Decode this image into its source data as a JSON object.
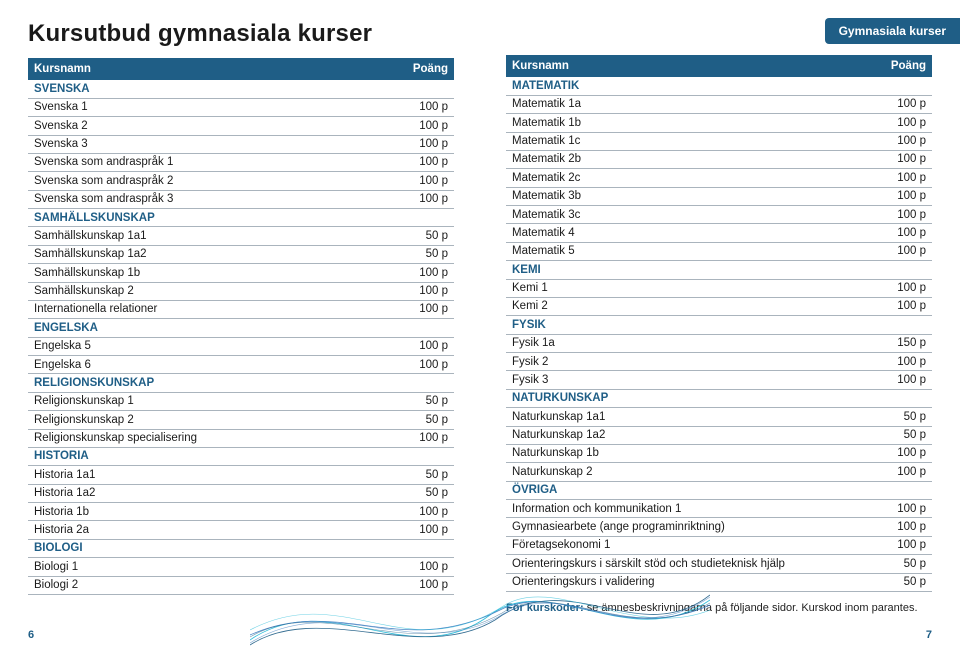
{
  "meta": {
    "title": "Kursutbud gymnasiala kurser",
    "tab": "Gymnasiala kurser",
    "header_name": "Kursnamn",
    "header_points": "Poäng",
    "footnote_bold": "För kurskoder:",
    "footnote_rest": " se ämnesbeskrivningarna på följande sidor. Kurskod inom parantes.",
    "page_left": "6",
    "page_right": "7"
  },
  "style": {
    "accent": "#1f5e86",
    "border": "#aab4bd",
    "title_fontsize": 24,
    "row_fontsize": 11.5,
    "swirl_colors": [
      "#1ab7d6",
      "#3a7bbf",
      "#1f5e86"
    ]
  },
  "left_table": [
    {
      "type": "section",
      "name": "SVENSKA"
    },
    {
      "name": "Svenska 1",
      "points": "100 p"
    },
    {
      "name": "Svenska 2",
      "points": "100 p"
    },
    {
      "name": "Svenska 3",
      "points": "100 p"
    },
    {
      "name": "Svenska som andraspråk 1",
      "points": "100 p"
    },
    {
      "name": "Svenska som andraspråk 2",
      "points": "100 p"
    },
    {
      "name": "Svenska som andraspråk 3",
      "points": "100 p"
    },
    {
      "type": "section",
      "name": "SAMHÄLLSKUNSKAP"
    },
    {
      "name": "Samhällskunskap 1a1",
      "points": "50 p"
    },
    {
      "name": "Samhällskunskap 1a2",
      "points": "50 p"
    },
    {
      "name": "Samhällskunskap 1b",
      "points": "100 p"
    },
    {
      "name": "Samhällskunskap 2",
      "points": "100 p"
    },
    {
      "name": "Internationella relationer",
      "points": "100 p"
    },
    {
      "type": "section",
      "name": "ENGELSKA"
    },
    {
      "name": "Engelska 5",
      "points": "100 p"
    },
    {
      "name": "Engelska 6",
      "points": "100 p"
    },
    {
      "type": "section",
      "name": "RELIGIONSKUNSKAP"
    },
    {
      "name": "Religionskunskap 1",
      "points": "50 p"
    },
    {
      "name": "Religionskunskap 2",
      "points": "50 p"
    },
    {
      "name": "Religionskunskap specialisering",
      "points": "100 p"
    },
    {
      "type": "section",
      "name": "HISTORIA"
    },
    {
      "name": "Historia 1a1",
      "points": "50 p"
    },
    {
      "name": "Historia 1a2",
      "points": "50 p"
    },
    {
      "name": "Historia 1b",
      "points": "100 p"
    },
    {
      "name": "Historia 2a",
      "points": "100 p"
    },
    {
      "type": "section",
      "name": "BIOLOGI"
    },
    {
      "name": "Biologi 1",
      "points": "100 p"
    },
    {
      "name": "Biologi 2",
      "points": "100 p"
    }
  ],
  "right_table": [
    {
      "type": "section",
      "name": "MATEMATIK"
    },
    {
      "name": "Matematik 1a",
      "points": "100 p"
    },
    {
      "name": "Matematik 1b",
      "points": "100 p"
    },
    {
      "name": "Matematik 1c",
      "points": "100 p"
    },
    {
      "name": "Matematik 2b",
      "points": "100 p"
    },
    {
      "name": "Matematik 2c",
      "points": "100 p"
    },
    {
      "name": "Matematik 3b",
      "points": "100 p"
    },
    {
      "name": "Matematik 3c",
      "points": "100 p"
    },
    {
      "name": "Matematik 4",
      "points": "100 p"
    },
    {
      "name": "Matematik 5",
      "points": "100 p"
    },
    {
      "type": "section",
      "name": "KEMI"
    },
    {
      "name": "Kemi 1",
      "points": "100 p"
    },
    {
      "name": "Kemi 2",
      "points": "100 p"
    },
    {
      "type": "section",
      "name": "FYSIK"
    },
    {
      "name": "Fysik 1a",
      "points": "150 p"
    },
    {
      "name": "Fysik 2",
      "points": "100 p"
    },
    {
      "name": "Fysik 3",
      "points": "100 p"
    },
    {
      "type": "section",
      "name": "NATURKUNSKAP"
    },
    {
      "name": "Naturkunskap 1a1",
      "points": "50 p"
    },
    {
      "name": "Naturkunskap 1a2",
      "points": "50 p"
    },
    {
      "name": "Naturkunskap 1b",
      "points": "100 p"
    },
    {
      "name": "Naturkunskap 2",
      "points": "100 p"
    },
    {
      "type": "section",
      "name": "ÖVRIGA"
    },
    {
      "name": "Information och kommunikation 1",
      "points": "100 p"
    },
    {
      "name": "Gymnasiearbete (ange programinriktning)",
      "points": "100 p"
    },
    {
      "name": "Företagsekonomi 1",
      "points": "100 p"
    },
    {
      "name": "Orienteringskurs i särskilt stöd och studieteknisk hjälp",
      "points": "50 p"
    },
    {
      "name": "Orienteringskurs i validering",
      "points": "50 p"
    }
  ]
}
